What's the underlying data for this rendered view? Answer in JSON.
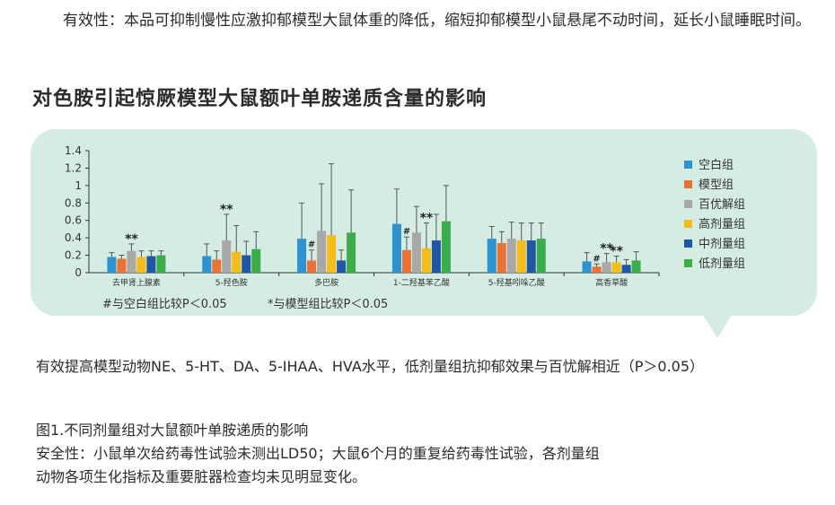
{
  "intro_text": "有效性：本品可抑制慢性应激抑郁模型大鼠体重的降低，缩短抑郁模型小鼠悬尾不动时间，延长小鼠睡眠时间。",
  "section_title": "对色胺引起惊厥模型大鼠额叶单胺递质含量的影响",
  "result_text": "有效提高模型动物NE、5-HT、DA、5-IHAA、HVA水平，低剂量组抗抑郁效果与百忧解相近（P＞0.05）",
  "figure_caption": "图1.不同剂量组对大鼠额叶单胺递质的影响",
  "safety_line1": "安全性：小鼠单次给药毒性试验未测出LD50；大鼠6个月的重复给药毒性试验，各剂量组",
  "safety_line2": "动物各项生化指标及重要脏器检查均未见明显变化。",
  "chart_data": {
    "type": "bar",
    "categories": [
      "去甲肾上腺素",
      "5-羟色胺",
      "多巴胺",
      "1-二羟基苯乙酸",
      "5-羟基吲哚乙酸",
      "高香草酸"
    ],
    "ylim": [
      0,
      1.4
    ],
    "yticks": [
      "0",
      "0.2",
      "0.4",
      "0.6",
      "0.8",
      "1",
      "1.2",
      "1.4"
    ],
    "grid": false,
    "legend_position": "right",
    "series": [
      {
        "name": "空白组",
        "color": "#2b93d1",
        "values": [
          0.18,
          0.19,
          0.39,
          0.56,
          0.39,
          0.13
        ],
        "errors": [
          0.05,
          0.14,
          0.41,
          0.4,
          0.14,
          0.1
        ]
      },
      {
        "name": "模型组",
        "color": "#ec7234",
        "values": [
          0.16,
          0.15,
          0.14,
          0.26,
          0.34,
          0.07
        ],
        "errors": [
          0.04,
          0.1,
          0.12,
          0.15,
          0.13,
          0.03
        ]
      },
      {
        "name": "百优解组",
        "color": "#a8a8a8",
        "values": [
          0.25,
          0.37,
          0.48,
          0.46,
          0.39,
          0.12
        ],
        "errors": [
          0.08,
          0.3,
          0.54,
          0.3,
          0.19,
          0.1
        ]
      },
      {
        "name": "高剂量组",
        "color": "#f7bd17",
        "values": [
          0.18,
          0.24,
          0.43,
          0.28,
          0.37,
          0.12
        ],
        "errors": [
          0.07,
          0.3,
          0.82,
          0.29,
          0.2,
          0.07
        ]
      },
      {
        "name": "中剂量组",
        "color": "#1e57a6",
        "values": [
          0.19,
          0.2,
          0.14,
          0.37,
          0.37,
          0.09
        ],
        "errors": [
          0.06,
          0.16,
          0.12,
          0.3,
          0.2,
          0.06
        ]
      },
      {
        "name": "低剂量组",
        "color": "#3bae49",
        "values": [
          0.2,
          0.27,
          0.46,
          0.59,
          0.39,
          0.14
        ],
        "errors": [
          0.05,
          0.2,
          0.49,
          0.41,
          0.18,
          0.1
        ]
      }
    ],
    "annotations": [
      {
        "category": 0,
        "series": 2,
        "text": "**"
      },
      {
        "category": 1,
        "series": 2,
        "text": "**"
      },
      {
        "category": 2,
        "series": 1,
        "text": "#"
      },
      {
        "category": 3,
        "series": 1,
        "text": "#"
      },
      {
        "category": 3,
        "series": 3,
        "text": "**"
      },
      {
        "category": 5,
        "series": 1,
        "text": "#"
      },
      {
        "category": 5,
        "series": 2,
        "text": "**"
      },
      {
        "category": 5,
        "series": 3,
        "text": "**"
      }
    ],
    "footnotes": [
      "#与空白组比较P＜0.05",
      "*与模型组比较P＜0.05"
    ]
  }
}
